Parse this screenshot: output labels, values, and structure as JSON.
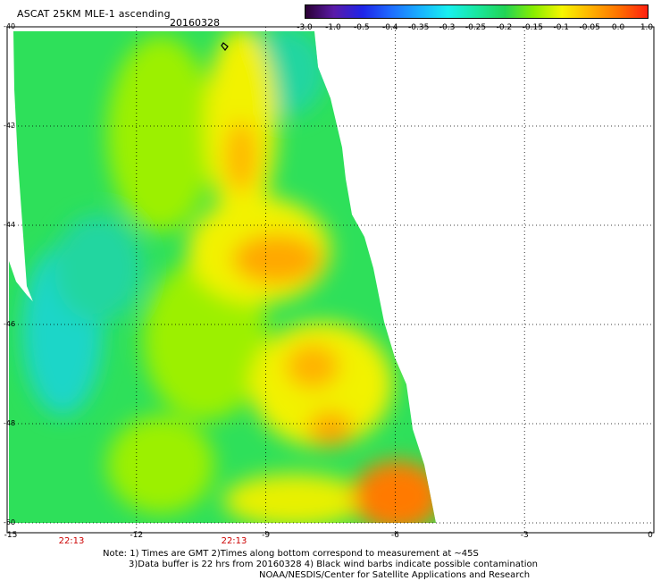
{
  "title": "ASCAT 25KM MLE-1 ascending",
  "date": "20160328",
  "colorbar": {
    "ticks": [
      "-3.0",
      "-1.0",
      "-0.5",
      "-0.4",
      "-0.35",
      "-0.3",
      "-0.25",
      "-0.2",
      "-0.15",
      "-0.1",
      "-0.05",
      "0.0",
      "1.0"
    ],
    "colors": [
      "#2a0033",
      "#5a1ba8",
      "#1f24e8",
      "#1f6cff",
      "#19b0ff",
      "#19f0f0",
      "#19e8a0",
      "#22d455",
      "#88ee00",
      "#f6f600",
      "#ffb200",
      "#ff7000",
      "#ff2010"
    ]
  },
  "map": {
    "lon_ticks": [
      "-15",
      "-12",
      "-9",
      "-6",
      "-3",
      "0"
    ],
    "lat_ticks": [
      "-40",
      "-42",
      "-44",
      "-46",
      "-48",
      "-50"
    ],
    "pass_times": [
      "22:13",
      "22:13"
    ],
    "swath_colors": {
      "cyan": "#1ad6c8",
      "green": "#2ee05a",
      "lime": "#9cf000",
      "yellow": "#f2f200",
      "orange": "#ffa800",
      "deep_orange": "#ff7a00"
    }
  },
  "notes": [
    "Note: 1) Times are GMT 2)Times along bottom correspond to measurement at ~45S",
    "3)Data buffer is 22 hrs from 20160328 4) Black wind barbs indicate possible contamination",
    "NOAA/NESDIS/Center for Satellite Applications and Research"
  ]
}
